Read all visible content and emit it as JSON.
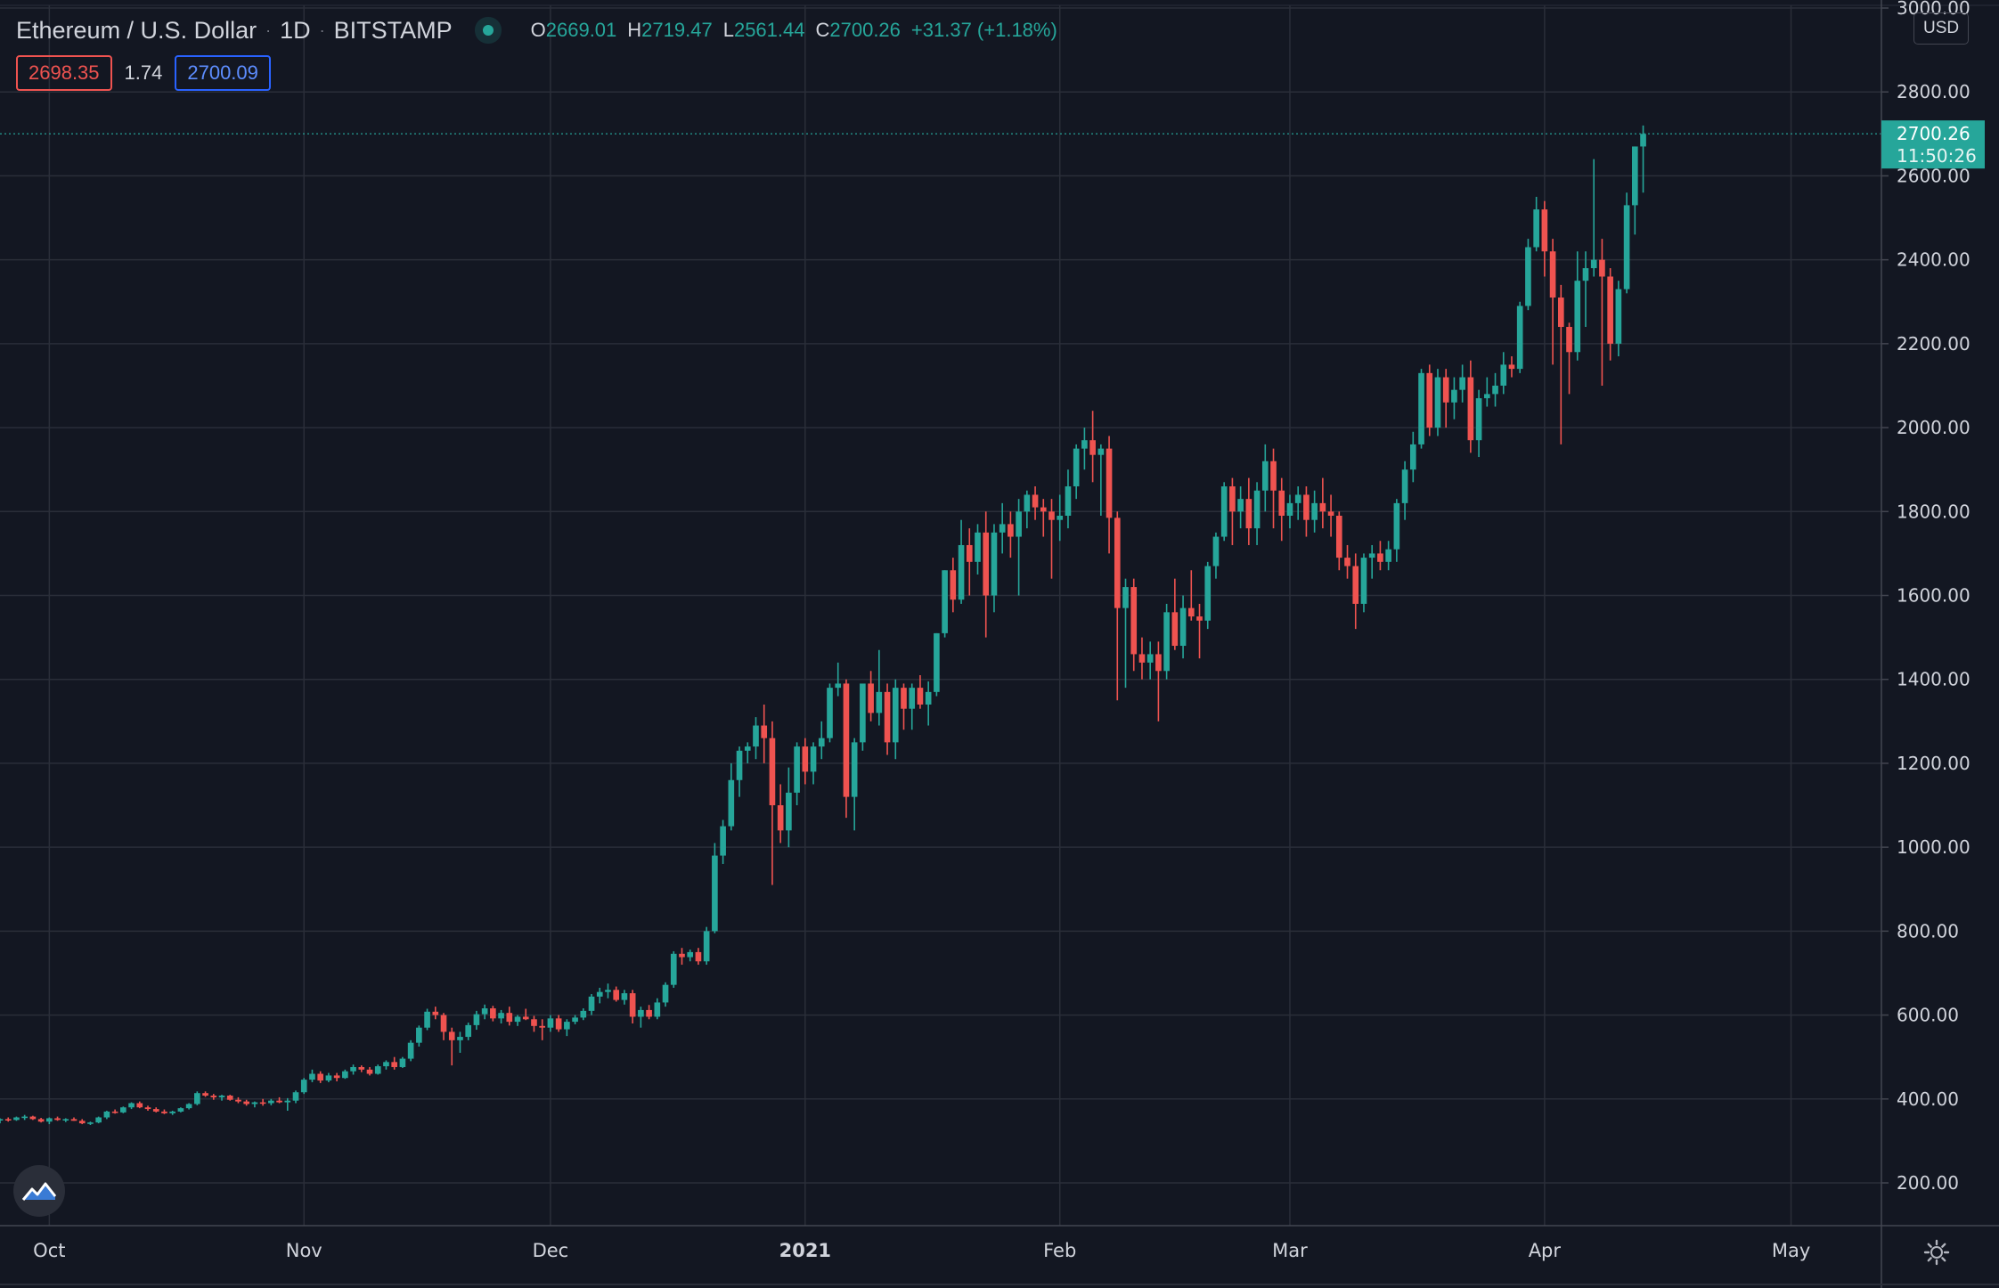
{
  "header": {
    "title": "Ethereum / U.S. Dollar",
    "interval": "1D",
    "exchange": "BITSTAMP",
    "ohlc": {
      "o_key": "O",
      "o_val": "2669.01",
      "h_key": "H",
      "h_val": "2719.47",
      "l_key": "L",
      "l_val": "2561.44",
      "c_key": "C",
      "c_val": "2700.26",
      "change": "+31.37 (+1.18%)"
    }
  },
  "quotes": {
    "bid": "2698.35",
    "spread": "1.74",
    "ask": "2700.09"
  },
  "price_axis": {
    "currency": "USD"
  },
  "last_price": {
    "value": "2700.26",
    "countdown": "11:50:26"
  },
  "icons": {
    "logo": "tradingview-logo-icon",
    "settings": "gear-icon",
    "live": "live-status-dot-icon"
  },
  "colors": {
    "background": "#131722",
    "grid": "#2a2e39",
    "axis_text": "#d1d4dc",
    "up": "#26a69a",
    "down": "#ef5350",
    "last_price_tag": "#26a69a"
  },
  "chart_data": {
    "type": "candlestick",
    "title": "Ethereum / U.S. Dollar",
    "symbol": "ETHUSD",
    "interval": "1D",
    "exchange": "BITSTAMP",
    "xlabel": "",
    "ylabel": "USD",
    "ylim": [
      0,
      3000
    ],
    "y_ticks": [
      200,
      400,
      600,
      800,
      1000,
      1200,
      1400,
      1600,
      1800,
      2000,
      2200,
      2400,
      2600,
      2800,
      3000
    ],
    "y_tick_labels": [
      "200.00",
      "400.00",
      "600.00",
      "800.00",
      "1000.00",
      "1200.00",
      "1400.00",
      "1600.00",
      "1800.00",
      "2000.00",
      "2200.00",
      "2400.00",
      "2600.00",
      "2800.00",
      "3000.00"
    ],
    "x_ticks": [
      {
        "label": "Oct",
        "date": "2020-10-01",
        "bold": false
      },
      {
        "label": "Nov",
        "date": "2020-11-01",
        "bold": false
      },
      {
        "label": "Dec",
        "date": "2020-12-01",
        "bold": false
      },
      {
        "label": "2021",
        "date": "2021-01-01",
        "bold": true
      },
      {
        "label": "Feb",
        "date": "2021-02-01",
        "bold": false
      },
      {
        "label": "Mar",
        "date": "2021-03-01",
        "bold": false
      },
      {
        "label": "Apr",
        "date": "2021-04-01",
        "bold": false
      },
      {
        "label": "May",
        "date": "2021-05-01",
        "bold": false
      }
    ],
    "x_range": [
      "2020-09-25",
      "2021-05-12"
    ],
    "grid": true,
    "last_price_line": 2700.26,
    "start_date": "2020-09-25",
    "candles": [
      [
        350,
        354,
        342,
        352
      ],
      [
        352,
        356,
        346,
        350
      ],
      [
        350,
        358,
        348,
        356
      ],
      [
        356,
        362,
        350,
        358
      ],
      [
        358,
        360,
        350,
        352
      ],
      [
        352,
        355,
        344,
        346
      ],
      [
        346,
        356,
        340,
        354
      ],
      [
        354,
        358,
        348,
        350
      ],
      [
        350,
        354,
        345,
        352
      ],
      [
        352,
        356,
        348,
        348
      ],
      [
        348,
        352,
        340,
        342
      ],
      [
        342,
        346,
        338,
        344
      ],
      [
        344,
        358,
        342,
        356
      ],
      [
        356,
        372,
        352,
        370
      ],
      [
        370,
        375,
        365,
        368
      ],
      [
        368,
        382,
        366,
        380
      ],
      [
        380,
        392,
        376,
        390
      ],
      [
        390,
        394,
        378,
        380
      ],
      [
        380,
        384,
        372,
        376
      ],
      [
        376,
        380,
        368,
        370
      ],
      [
        370,
        375,
        364,
        366
      ],
      [
        366,
        372,
        362,
        370
      ],
      [
        370,
        380,
        368,
        378
      ],
      [
        378,
        390,
        375,
        388
      ],
      [
        388,
        418,
        385,
        414
      ],
      [
        414,
        418,
        405,
        408
      ],
      [
        408,
        412,
        398,
        404
      ],
      [
        404,
        410,
        396,
        408
      ],
      [
        408,
        410,
        396,
        398
      ],
      [
        398,
        404,
        390,
        394
      ],
      [
        394,
        398,
        384,
        388
      ],
      [
        388,
        394,
        380,
        392
      ],
      [
        392,
        400,
        384,
        390
      ],
      [
        390,
        400,
        385,
        396
      ],
      [
        396,
        404,
        390,
        392
      ],
      [
        392,
        402,
        372,
        396
      ],
      [
        396,
        420,
        390,
        416
      ],
      [
        416,
        450,
        412,
        446
      ],
      [
        446,
        470,
        440,
        460
      ],
      [
        460,
        466,
        438,
        444
      ],
      [
        444,
        462,
        440,
        456
      ],
      [
        456,
        462,
        442,
        450
      ],
      [
        450,
        470,
        448,
        466
      ],
      [
        466,
        482,
        458,
        476
      ],
      [
        476,
        480,
        464,
        470
      ],
      [
        470,
        476,
        456,
        460
      ],
      [
        460,
        482,
        458,
        478
      ],
      [
        478,
        492,
        470,
        488
      ],
      [
        488,
        500,
        470,
        476
      ],
      [
        476,
        500,
        474,
        496
      ],
      [
        496,
        540,
        490,
        534
      ],
      [
        534,
        575,
        525,
        570
      ],
      [
        570,
        615,
        564,
        608
      ],
      [
        608,
        620,
        590,
        600
      ],
      [
        600,
        605,
        540,
        560
      ],
      [
        560,
        570,
        480,
        540
      ],
      [
        540,
        560,
        510,
        548
      ],
      [
        548,
        582,
        540,
        576
      ],
      [
        576,
        610,
        565,
        602
      ],
      [
        602,
        625,
        590,
        616
      ],
      [
        616,
        622,
        585,
        592
      ],
      [
        592,
        612,
        580,
        605
      ],
      [
        605,
        620,
        575,
        584
      ],
      [
        584,
        600,
        574,
        596
      ],
      [
        596,
        615,
        588,
        590
      ],
      [
        590,
        598,
        560,
        574
      ],
      [
        574,
        590,
        540,
        570
      ],
      [
        570,
        600,
        560,
        592
      ],
      [
        592,
        600,
        560,
        566
      ],
      [
        566,
        590,
        550,
        584
      ],
      [
        584,
        600,
        578,
        594
      ],
      [
        594,
        616,
        588,
        610
      ],
      [
        610,
        650,
        600,
        644
      ],
      [
        644,
        665,
        628,
        655
      ],
      [
        655,
        675,
        640,
        660
      ],
      [
        660,
        668,
        632,
        636
      ],
      [
        636,
        660,
        625,
        652
      ],
      [
        652,
        660,
        580,
        596
      ],
      [
        596,
        620,
        570,
        612
      ],
      [
        612,
        624,
        590,
        596
      ],
      [
        596,
        640,
        590,
        630
      ],
      [
        630,
        678,
        620,
        672
      ],
      [
        672,
        752,
        665,
        746
      ],
      [
        746,
        760,
        720,
        738
      ],
      [
        738,
        756,
        728,
        750
      ],
      [
        750,
        760,
        720,
        728
      ],
      [
        728,
        810,
        720,
        800
      ],
      [
        800,
        1010,
        795,
        980
      ],
      [
        980,
        1065,
        960,
        1050
      ],
      [
        1050,
        1200,
        1040,
        1160
      ],
      [
        1160,
        1240,
        1120,
        1230
      ],
      [
        1230,
        1250,
        1200,
        1240
      ],
      [
        1240,
        1310,
        1210,
        1290
      ],
      [
        1290,
        1340,
        1200,
        1260
      ],
      [
        1260,
        1300,
        910,
        1100
      ],
      [
        1100,
        1150,
        1010,
        1040
      ],
      [
        1040,
        1190,
        1000,
        1130
      ],
      [
        1130,
        1250,
        1100,
        1240
      ],
      [
        1240,
        1260,
        1150,
        1180
      ],
      [
        1180,
        1250,
        1150,
        1240
      ],
      [
        1240,
        1300,
        1210,
        1260
      ],
      [
        1260,
        1390,
        1250,
        1380
      ],
      [
        1380,
        1440,
        1360,
        1390
      ],
      [
        1390,
        1400,
        1070,
        1120
      ],
      [
        1120,
        1260,
        1040,
        1250
      ],
      [
        1250,
        1380,
        1230,
        1390
      ],
      [
        1390,
        1420,
        1300,
        1320
      ],
      [
        1320,
        1470,
        1290,
        1370
      ],
      [
        1370,
        1390,
        1220,
        1250
      ],
      [
        1250,
        1400,
        1210,
        1380
      ],
      [
        1380,
        1390,
        1280,
        1330
      ],
      [
        1330,
        1390,
        1280,
        1380
      ],
      [
        1380,
        1410,
        1330,
        1340
      ],
      [
        1340,
        1395,
        1290,
        1370
      ],
      [
        1370,
        1510,
        1360,
        1510
      ],
      [
        1510,
        1660,
        1500,
        1660
      ],
      [
        1660,
        1690,
        1560,
        1590
      ],
      [
        1590,
        1780,
        1580,
        1720
      ],
      [
        1720,
        1760,
        1600,
        1680
      ],
      [
        1680,
        1770,
        1650,
        1750
      ],
      [
        1750,
        1800,
        1500,
        1600
      ],
      [
        1600,
        1770,
        1560,
        1750
      ],
      [
        1750,
        1820,
        1700,
        1770
      ],
      [
        1770,
        1800,
        1690,
        1740
      ],
      [
        1740,
        1830,
        1600,
        1800
      ],
      [
        1800,
        1850,
        1760,
        1840
      ],
      [
        1840,
        1860,
        1780,
        1810
      ],
      [
        1810,
        1830,
        1740,
        1800
      ],
      [
        1800,
        1830,
        1640,
        1780
      ],
      [
        1780,
        1840,
        1730,
        1790
      ],
      [
        1790,
        1900,
        1760,
        1860
      ],
      [
        1860,
        1960,
        1830,
        1950
      ],
      [
        1950,
        2000,
        1900,
        1970
      ],
      [
        1970,
        2040,
        1870,
        1935
      ],
      [
        1935,
        1960,
        1790,
        1950
      ],
      [
        1950,
        1980,
        1700,
        1785
      ],
      [
        1785,
        1800,
        1350,
        1570
      ],
      [
        1570,
        1640,
        1380,
        1620
      ],
      [
        1620,
        1640,
        1420,
        1460
      ],
      [
        1460,
        1500,
        1400,
        1440
      ],
      [
        1440,
        1490,
        1400,
        1460
      ],
      [
        1460,
        1490,
        1300,
        1420
      ],
      [
        1420,
        1580,
        1400,
        1560
      ],
      [
        1560,
        1640,
        1470,
        1480
      ],
      [
        1480,
        1600,
        1450,
        1570
      ],
      [
        1570,
        1660,
        1540,
        1550
      ],
      [
        1550,
        1580,
        1450,
        1540
      ],
      [
        1540,
        1680,
        1520,
        1670
      ],
      [
        1670,
        1750,
        1640,
        1740
      ],
      [
        1740,
        1870,
        1730,
        1860
      ],
      [
        1860,
        1880,
        1720,
        1800
      ],
      [
        1800,
        1860,
        1760,
        1830
      ],
      [
        1830,
        1880,
        1720,
        1760
      ],
      [
        1760,
        1870,
        1720,
        1850
      ],
      [
        1850,
        1960,
        1800,
        1920
      ],
      [
        1920,
        1950,
        1760,
        1850
      ],
      [
        1850,
        1880,
        1730,
        1790
      ],
      [
        1790,
        1840,
        1760,
        1820
      ],
      [
        1820,
        1860,
        1780,
        1840
      ],
      [
        1840,
        1860,
        1740,
        1780
      ],
      [
        1780,
        1850,
        1750,
        1820
      ],
      [
        1820,
        1880,
        1760,
        1800
      ],
      [
        1800,
        1840,
        1740,
        1790
      ],
      [
        1790,
        1800,
        1660,
        1690
      ],
      [
        1690,
        1720,
        1640,
        1670
      ],
      [
        1670,
        1700,
        1520,
        1580
      ],
      [
        1580,
        1700,
        1560,
        1690
      ],
      [
        1690,
        1720,
        1640,
        1700
      ],
      [
        1700,
        1730,
        1660,
        1680
      ],
      [
        1680,
        1730,
        1660,
        1710
      ],
      [
        1710,
        1830,
        1680,
        1820
      ],
      [
        1820,
        1920,
        1780,
        1900
      ],
      [
        1900,
        1990,
        1870,
        1960
      ],
      [
        1960,
        2140,
        1950,
        2130
      ],
      [
        2130,
        2150,
        1980,
        2000
      ],
      [
        2000,
        2140,
        1980,
        2120
      ],
      [
        2120,
        2140,
        2000,
        2060
      ],
      [
        2060,
        2120,
        2020,
        2090
      ],
      [
        2090,
        2150,
        2060,
        2120
      ],
      [
        2120,
        2160,
        1940,
        1970
      ],
      [
        1970,
        2090,
        1930,
        2070
      ],
      [
        2070,
        2120,
        2050,
        2080
      ],
      [
        2080,
        2130,
        2050,
        2100
      ],
      [
        2100,
        2180,
        2080,
        2150
      ],
      [
        2150,
        2170,
        2120,
        2140
      ],
      [
        2140,
        2300,
        2130,
        2290
      ],
      [
        2290,
        2450,
        2280,
        2430
      ],
      [
        2430,
        2550,
        2420,
        2520
      ],
      [
        2520,
        2540,
        2360,
        2420
      ],
      [
        2420,
        2450,
        2150,
        2310
      ],
      [
        2310,
        2340,
        1960,
        2240
      ],
      [
        2240,
        2250,
        2080,
        2180
      ],
      [
        2180,
        2420,
        2160,
        2350
      ],
      [
        2350,
        2420,
        2240,
        2380
      ],
      [
        2380,
        2640,
        2360,
        2400
      ],
      [
        2400,
        2450,
        2100,
        2360
      ],
      [
        2360,
        2380,
        2160,
        2200
      ],
      [
        2200,
        2350,
        2170,
        2330
      ],
      [
        2330,
        2560,
        2320,
        2530
      ],
      [
        2530,
        2670,
        2460,
        2670
      ],
      [
        2670,
        2720,
        2560,
        2700
      ]
    ]
  }
}
